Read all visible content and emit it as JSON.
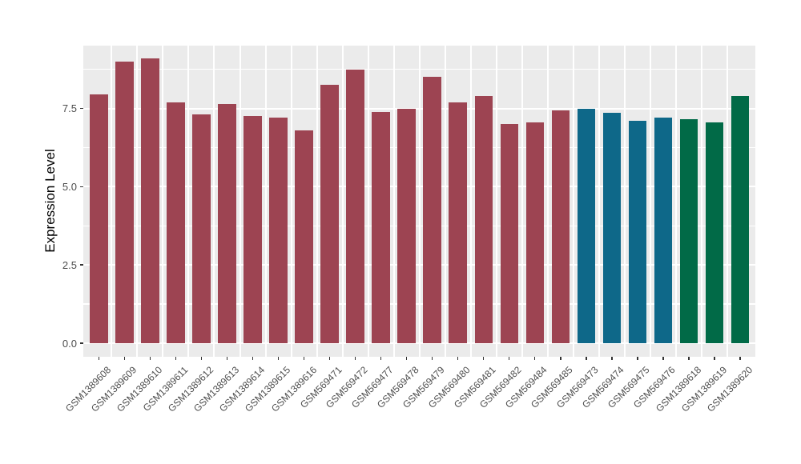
{
  "chart_data": {
    "type": "bar",
    "title": "",
    "xlabel": "",
    "ylabel": "Expression Level",
    "ylim": [
      -0.45,
      9.5
    ],
    "yticks": [
      0.0,
      2.5,
      5.0,
      7.5
    ],
    "ytick_labels": [
      "0.0",
      "2.5",
      "5.0",
      "7.5"
    ],
    "grid": "on",
    "legend": "none",
    "bars": [
      {
        "label": "GSM1389608",
        "value": 7.95,
        "color": "#9D4452"
      },
      {
        "label": "GSM1389609",
        "value": 9.0,
        "color": "#9D4452"
      },
      {
        "label": "GSM1389610",
        "value": 9.1,
        "color": "#9D4452"
      },
      {
        "label": "GSM1389611",
        "value": 7.7,
        "color": "#9D4452"
      },
      {
        "label": "GSM1389612",
        "value": 7.3,
        "color": "#9D4452"
      },
      {
        "label": "GSM1389613",
        "value": 7.65,
        "color": "#9D4452"
      },
      {
        "label": "GSM1389614",
        "value": 7.25,
        "color": "#9D4452"
      },
      {
        "label": "GSM1389615",
        "value": 7.2,
        "color": "#9D4452"
      },
      {
        "label": "GSM1389616",
        "value": 6.8,
        "color": "#9D4452"
      },
      {
        "label": "GSM569471",
        "value": 8.25,
        "color": "#9D4452"
      },
      {
        "label": "GSM569472",
        "value": 8.75,
        "color": "#9D4452"
      },
      {
        "label": "GSM569477",
        "value": 7.4,
        "color": "#9D4452"
      },
      {
        "label": "GSM569478",
        "value": 7.5,
        "color": "#9D4452"
      },
      {
        "label": "GSM569479",
        "value": 8.5,
        "color": "#9D4452"
      },
      {
        "label": "GSM569480",
        "value": 7.7,
        "color": "#9D4452"
      },
      {
        "label": "GSM569481",
        "value": 7.9,
        "color": "#9D4452"
      },
      {
        "label": "GSM569482",
        "value": 7.0,
        "color": "#9D4452"
      },
      {
        "label": "GSM569484",
        "value": 7.05,
        "color": "#9D4452"
      },
      {
        "label": "GSM569485",
        "value": 7.45,
        "color": "#9D4452"
      },
      {
        "label": "GSM569473",
        "value": 7.5,
        "color": "#0E6889"
      },
      {
        "label": "GSM569474",
        "value": 7.35,
        "color": "#0E6889"
      },
      {
        "label": "GSM569475",
        "value": 7.1,
        "color": "#0E6889"
      },
      {
        "label": "GSM569476",
        "value": 7.2,
        "color": "#0E6889"
      },
      {
        "label": "GSM1389618",
        "value": 7.15,
        "color": "#016A47"
      },
      {
        "label": "GSM1389619",
        "value": 7.05,
        "color": "#016A47"
      },
      {
        "label": "GSM1389620",
        "value": 7.9,
        "color": "#016A47"
      }
    ],
    "theme": {
      "panel_background": "#EBEBEB",
      "gridline_color": "#FFFFFF",
      "tick_mark_color": "#333333",
      "tick_label_color": "#4D4D4D",
      "axis_title_color": "#000000"
    }
  }
}
